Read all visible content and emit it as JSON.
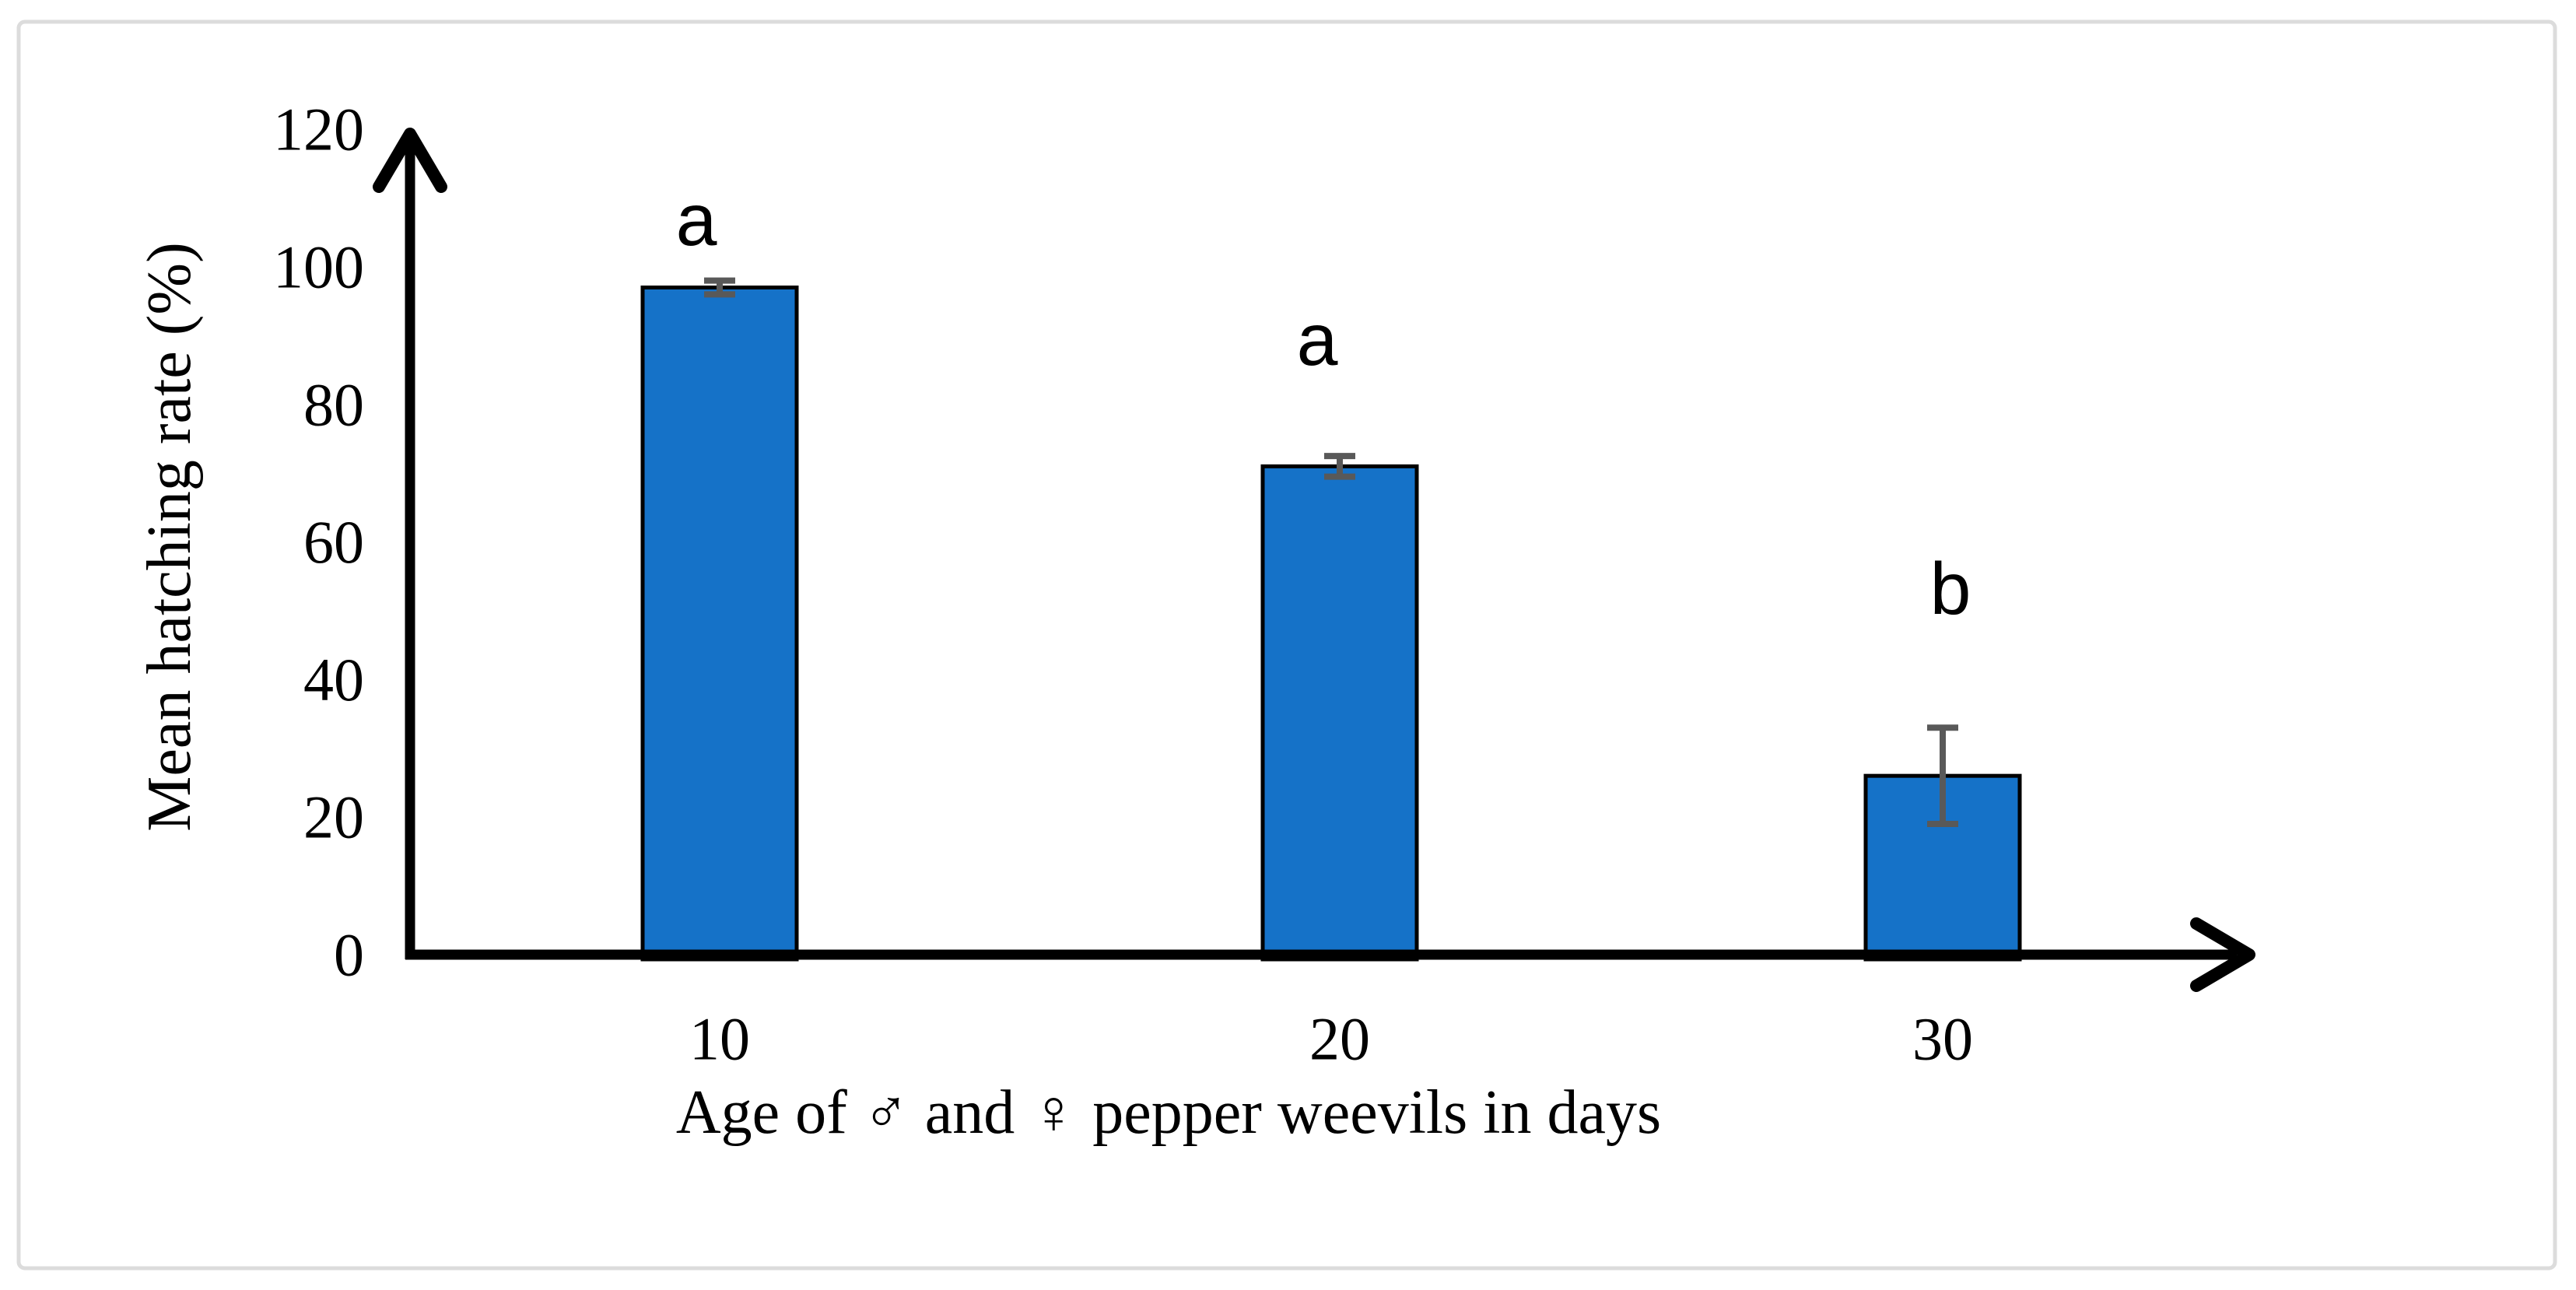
{
  "chart_data": {
    "type": "bar",
    "title": "",
    "categories": [
      "10",
      "20",
      "30"
    ],
    "values": [
      97,
      71,
      26
    ],
    "error_bars": [
      1,
      1.5,
      7
    ],
    "sig_letters": [
      "a",
      "a",
      "b"
    ],
    "xlabel": "Age of ♂ and ♀ pepper weevils in days",
    "ylabel": "Mean hatching rate (%)",
    "yticks": [
      0,
      20,
      40,
      60,
      80,
      100,
      120
    ],
    "ylim": [
      0,
      120
    ],
    "grid": "off",
    "legend": "none",
    "bar_color": "#1572C8",
    "bar_border_color": "#000000",
    "error_color": "#595959",
    "axis_color": "#000000",
    "frame_color": "#DCDCDC"
  }
}
